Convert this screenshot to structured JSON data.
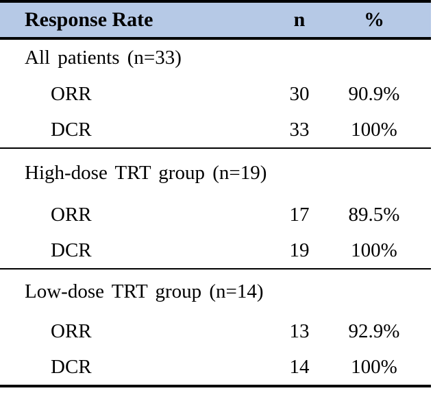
{
  "table": {
    "columns": {
      "label": "Response Rate",
      "n": "n",
      "pct": "%"
    },
    "sections": [
      {
        "title": "All patients (n=33)",
        "rows": [
          {
            "label": "ORR",
            "n": "30",
            "pct": "90.9%"
          },
          {
            "label": "DCR",
            "n": "33",
            "pct": "100%"
          }
        ]
      },
      {
        "title": "High-dose TRT group (n=19)",
        "rows": [
          {
            "label": "ORR",
            "n": "17",
            "pct": "89.5%"
          },
          {
            "label": "DCR",
            "n": "19",
            "pct": "100%"
          }
        ]
      },
      {
        "title": "Low-dose TRT group (n=14)",
        "rows": [
          {
            "label": "ORR",
            "n": "13",
            "pct": "92.9%"
          },
          {
            "label": "DCR",
            "n": "14",
            "pct": "100%"
          }
        ]
      }
    ]
  },
  "colors": {
    "header_bg": "#b6c9e6",
    "border": "#000000",
    "text": "#000000",
    "background": "#ffffff"
  },
  "chart_data": {
    "type": "table",
    "title": "Response Rate",
    "columns": [
      "Response Rate",
      "n",
      "%"
    ],
    "rows": [
      [
        "All patients (n=33)",
        "",
        ""
      ],
      [
        "ORR",
        "30",
        "90.9%"
      ],
      [
        "DCR",
        "33",
        "100%"
      ],
      [
        "High-dose TRT group (n=19)",
        "",
        ""
      ],
      [
        "ORR",
        "17",
        "89.5%"
      ],
      [
        "DCR",
        "19",
        "100%"
      ],
      [
        "Low-dose TRT group (n=14)",
        "",
        ""
      ],
      [
        "ORR",
        "13",
        "92.9%"
      ],
      [
        "DCR",
        "14",
        "100%"
      ]
    ]
  }
}
